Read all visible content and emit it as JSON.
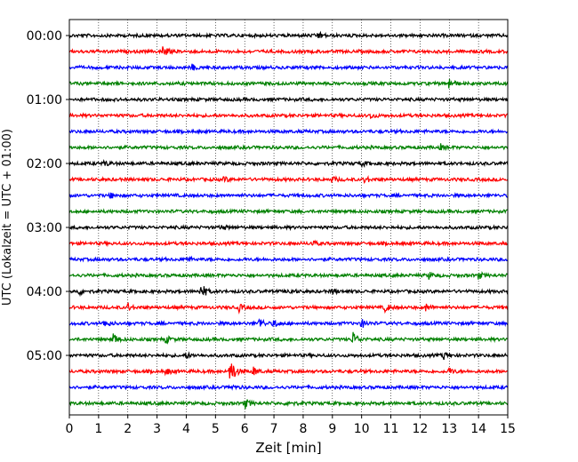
{
  "chart_data": {
    "type": "line",
    "xlabel": "Zeit  [min]",
    "ylabel": "UTC (Lokalzeit = UTC + 01:00)",
    "xlim": [
      0,
      15
    ],
    "xticks": [
      0,
      1,
      2,
      3,
      4,
      5,
      6,
      7,
      8,
      9,
      10,
      11,
      12,
      13,
      14,
      15
    ],
    "x_grid": "dotted vertical at each minute",
    "y_tick_labels": [
      {
        "label": "00:00",
        "trace": 0
      },
      {
        "label": "01:00",
        "trace": 4
      },
      {
        "label": "02:00",
        "trace": 8
      },
      {
        "label": "03:00",
        "trace": 12
      },
      {
        "label": "04:00",
        "trace": 16
      },
      {
        "label": "05:00",
        "trace": 20
      }
    ],
    "color_cycle": [
      "#000000",
      "#ff0000",
      "#0000ff",
      "#008000"
    ],
    "traces": [
      {
        "start": "00:00",
        "color": "#000000",
        "events": [
          [
            8.5,
            4.5
          ]
        ]
      },
      {
        "start": "00:15",
        "color": "#ff0000",
        "events": [
          [
            3.2,
            7
          ]
        ]
      },
      {
        "start": "00:30",
        "color": "#0000ff",
        "events": [
          [
            4.2,
            3
          ]
        ]
      },
      {
        "start": "00:45",
        "color": "#008000",
        "events": [
          [
            13.0,
            7
          ]
        ]
      },
      {
        "start": "01:00",
        "color": "#000000",
        "events": []
      },
      {
        "start": "01:15",
        "color": "#ff0000",
        "events": [
          [
            10.3,
            3
          ]
        ]
      },
      {
        "start": "01:30",
        "color": "#0000ff",
        "events": []
      },
      {
        "start": "01:45",
        "color": "#008000",
        "events": [
          [
            12.7,
            3
          ]
        ]
      },
      {
        "start": "02:00",
        "color": "#000000",
        "events": [
          [
            1.2,
            3
          ],
          [
            10.0,
            3
          ]
        ]
      },
      {
        "start": "02:15",
        "color": "#ff0000",
        "events": [
          [
            5.3,
            3
          ],
          [
            9.0,
            3.5
          ],
          [
            10.1,
            4
          ]
        ]
      },
      {
        "start": "02:30",
        "color": "#0000ff",
        "events": [
          [
            1.4,
            3
          ]
        ]
      },
      {
        "start": "02:45",
        "color": "#008000",
        "events": []
      },
      {
        "start": "03:00",
        "color": "#000000",
        "events": [
          [
            5.2,
            3
          ]
        ]
      },
      {
        "start": "03:15",
        "color": "#ff0000",
        "events": [
          [
            8.3,
            3
          ]
        ]
      },
      {
        "start": "03:30",
        "color": "#0000ff",
        "events": [
          [
            4.0,
            3
          ]
        ]
      },
      {
        "start": "03:45",
        "color": "#008000",
        "events": [
          [
            12.3,
            3.5
          ],
          [
            14.0,
            4
          ]
        ]
      },
      {
        "start": "04:00",
        "color": "#000000",
        "events": [
          [
            0.3,
            4
          ],
          [
            4.5,
            11
          ],
          [
            7.5,
            3.5
          ],
          [
            9.0,
            3
          ]
        ]
      },
      {
        "start": "04:15",
        "color": "#ff0000",
        "events": [
          [
            2.0,
            4
          ],
          [
            5.8,
            4
          ],
          [
            10.8,
            5
          ],
          [
            12.2,
            4.5
          ]
        ]
      },
      {
        "start": "04:30",
        "color": "#0000ff",
        "events": [
          [
            1.2,
            5
          ],
          [
            6.5,
            7
          ],
          [
            7.0,
            5
          ],
          [
            10.0,
            5
          ]
        ]
      },
      {
        "start": "04:45",
        "color": "#008000",
        "events": [
          [
            1.5,
            7
          ],
          [
            3.3,
            4
          ],
          [
            9.7,
            9
          ]
        ]
      },
      {
        "start": "05:00",
        "color": "#000000",
        "events": [
          [
            4.0,
            3
          ],
          [
            12.8,
            4.5
          ]
        ]
      },
      {
        "start": "05:15",
        "color": "#ff0000",
        "events": [
          [
            3.3,
            4
          ],
          [
            5.5,
            20
          ],
          [
            6.3,
            5
          ],
          [
            13.0,
            4
          ]
        ]
      },
      {
        "start": "05:30",
        "color": "#0000ff",
        "events": [
          [
            5.5,
            3
          ]
        ]
      },
      {
        "start": "05:45",
        "color": "#008000",
        "events": [
          [
            6.0,
            6
          ],
          [
            7.5,
            3
          ]
        ]
      }
    ]
  }
}
